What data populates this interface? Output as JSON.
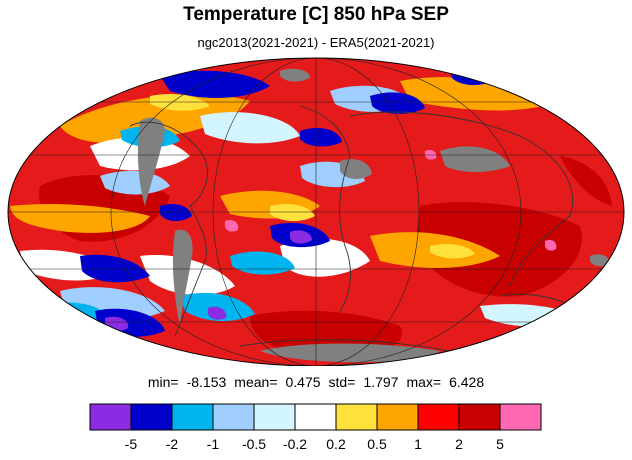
{
  "title": "Temperature [C] 850 hPa SEP",
  "subtitle": "ngc2013(2021-2021) - ERA5(2021-2021)",
  "stats": {
    "min_label": "min=",
    "min": "-8.153",
    "mean_label": "mean=",
    "mean": "0.475",
    "std_label": "std=",
    "std": "1.797",
    "max_label": "max=",
    "max": "6.428"
  },
  "colorbar": {
    "colors": [
      "#8b2be2",
      "#0000cd",
      "#00b4f0",
      "#a0cfff",
      "#d2f5ff",
      "#ffffff",
      "#ffe13c",
      "#ffa500",
      "#ff0000",
      "#c80000",
      "#ff69b4"
    ],
    "tick_labels": [
      "-5",
      "-2",
      "-1",
      "-0.5",
      "-0.2",
      "0.2",
      "0.5",
      "1",
      "2",
      "5"
    ]
  },
  "map": {
    "projection": "mollweide",
    "missing_color": "#808080",
    "background_color": "#e51a1a"
  }
}
